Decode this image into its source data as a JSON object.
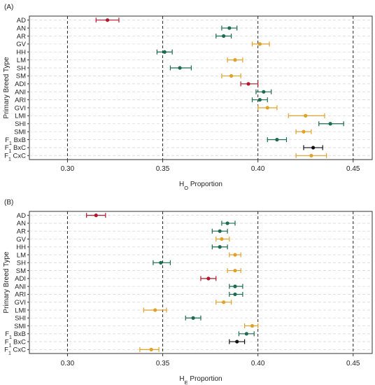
{
  "chart_data": [
    {
      "type": "scatter",
      "panel_label": "(A)",
      "xlabel_main": "H",
      "xlabel_sub": "O",
      "xlabel_rest": " Proportion",
      "ylabel": "Primary Breed Type",
      "xlim": [
        0.28,
        0.46
      ],
      "xticks": [
        "0.30",
        "0.35",
        "0.40",
        "0.45"
      ],
      "xtick_values": [
        0.3,
        0.35,
        0.4,
        0.45
      ],
      "categories": [
        "AD",
        "AN",
        "AR",
        "GV",
        "HH",
        "LM",
        "SH",
        "SM",
        "ADI",
        "ANI",
        "ARI",
        "GVI",
        "LMI",
        "SHI",
        "SMI",
        "F1 BxB",
        "F1 BxC",
        "F1 CxC"
      ],
      "points": [
        {
          "category": "AD",
          "value": 0.321,
          "lower": 0.315,
          "upper": 0.327,
          "color": "#B2182B"
        },
        {
          "category": "AN",
          "value": 0.385,
          "lower": 0.381,
          "upper": 0.389,
          "color": "#1B6B4F"
        },
        {
          "category": "AR",
          "value": 0.382,
          "lower": 0.378,
          "upper": 0.386,
          "color": "#1B6B4F"
        },
        {
          "category": "GV",
          "value": 0.401,
          "lower": 0.397,
          "upper": 0.406,
          "color": "#E0A12B"
        },
        {
          "category": "HH",
          "value": 0.351,
          "lower": 0.347,
          "upper": 0.355,
          "color": "#1B6B4F"
        },
        {
          "category": "LM",
          "value": 0.388,
          "lower": 0.384,
          "upper": 0.392,
          "color": "#E0A12B"
        },
        {
          "category": "SH",
          "value": 0.359,
          "lower": 0.354,
          "upper": 0.365,
          "color": "#1B6B4F"
        },
        {
          "category": "SM",
          "value": 0.386,
          "lower": 0.381,
          "upper": 0.391,
          "color": "#E0A12B"
        },
        {
          "category": "ADI",
          "value": 0.395,
          "lower": 0.391,
          "upper": 0.4,
          "color": "#B2182B"
        },
        {
          "category": "ANI",
          "value": 0.403,
          "lower": 0.399,
          "upper": 0.407,
          "color": "#1B6B4F"
        },
        {
          "category": "ARI",
          "value": 0.401,
          "lower": 0.397,
          "upper": 0.405,
          "color": "#1B6B4F"
        },
        {
          "category": "GVI",
          "value": 0.405,
          "lower": 0.4,
          "upper": 0.41,
          "color": "#E0A12B"
        },
        {
          "category": "LMI",
          "value": 0.425,
          "lower": 0.416,
          "upper": 0.435,
          "color": "#E0A12B"
        },
        {
          "category": "SHI",
          "value": 0.438,
          "lower": 0.432,
          "upper": 0.445,
          "color": "#1B6B4F"
        },
        {
          "category": "SMI",
          "value": 0.424,
          "lower": 0.42,
          "upper": 0.428,
          "color": "#E0A12B"
        },
        {
          "category": "F1 BxB",
          "value": 0.41,
          "lower": 0.405,
          "upper": 0.415,
          "color": "#1B6B4F"
        },
        {
          "category": "F1 BxC",
          "value": 0.429,
          "lower": 0.424,
          "upper": 0.434,
          "color": "#111111"
        },
        {
          "category": "F1 CxC",
          "value": 0.428,
          "lower": 0.42,
          "upper": 0.436,
          "color": "#E0A12B"
        }
      ],
      "grid": true
    },
    {
      "type": "scatter",
      "panel_label": "(B)",
      "xlabel_main": "H",
      "xlabel_sub": "E",
      "xlabel_rest": " Proportion",
      "ylabel": "Primary Breed Type",
      "xlim": [
        0.28,
        0.46
      ],
      "xticks": [
        "0.30",
        "0.35",
        "0.40",
        "0.45"
      ],
      "xtick_values": [
        0.3,
        0.35,
        0.4,
        0.45
      ],
      "categories": [
        "AD",
        "AN",
        "AR",
        "GV",
        "HH",
        "LM",
        "SH",
        "SM",
        "ADI",
        "ANI",
        "ARI",
        "GVI",
        "LMI",
        "SHI",
        "SMI",
        "F1 BxB",
        "F1 BxC",
        "F1 CxC"
      ],
      "points": [
        {
          "category": "AD",
          "value": 0.315,
          "lower": 0.31,
          "upper": 0.32,
          "color": "#B2182B"
        },
        {
          "category": "AN",
          "value": 0.384,
          "lower": 0.381,
          "upper": 0.388,
          "color": "#1B6B4F"
        },
        {
          "category": "AR",
          "value": 0.38,
          "lower": 0.376,
          "upper": 0.384,
          "color": "#1B6B4F"
        },
        {
          "category": "GV",
          "value": 0.381,
          "lower": 0.378,
          "upper": 0.385,
          "color": "#E0A12B"
        },
        {
          "category": "HH",
          "value": 0.38,
          "lower": 0.376,
          "upper": 0.384,
          "color": "#1B6B4F"
        },
        {
          "category": "LM",
          "value": 0.388,
          "lower": 0.385,
          "upper": 0.391,
          "color": "#E0A12B"
        },
        {
          "category": "SH",
          "value": 0.349,
          "lower": 0.345,
          "upper": 0.354,
          "color": "#1B6B4F"
        },
        {
          "category": "SM",
          "value": 0.388,
          "lower": 0.384,
          "upper": 0.391,
          "color": "#E0A12B"
        },
        {
          "category": "ADI",
          "value": 0.374,
          "lower": 0.37,
          "upper": 0.378,
          "color": "#B2182B"
        },
        {
          "category": "ANI",
          "value": 0.388,
          "lower": 0.385,
          "upper": 0.392,
          "color": "#1B6B4F"
        },
        {
          "category": "ARI",
          "value": 0.388,
          "lower": 0.385,
          "upper": 0.392,
          "color": "#1B6B4F"
        },
        {
          "category": "GVI",
          "value": 0.382,
          "lower": 0.378,
          "upper": 0.386,
          "color": "#E0A12B"
        },
        {
          "category": "LMI",
          "value": 0.346,
          "lower": 0.34,
          "upper": 0.352,
          "color": "#E0A12B"
        },
        {
          "category": "SHI",
          "value": 0.366,
          "lower": 0.362,
          "upper": 0.37,
          "color": "#1B6B4F"
        },
        {
          "category": "SMI",
          "value": 0.397,
          "lower": 0.393,
          "upper": 0.4,
          "color": "#E0A12B"
        },
        {
          "category": "F1 BxB",
          "value": 0.394,
          "lower": 0.39,
          "upper": 0.398,
          "color": "#1B6B4F"
        },
        {
          "category": "F1 BxC",
          "value": 0.389,
          "lower": 0.385,
          "upper": 0.393,
          "color": "#111111"
        },
        {
          "category": "F1 CxC",
          "value": 0.344,
          "lower": 0.338,
          "upper": 0.348,
          "color": "#E0A12B"
        }
      ],
      "grid": true
    }
  ]
}
